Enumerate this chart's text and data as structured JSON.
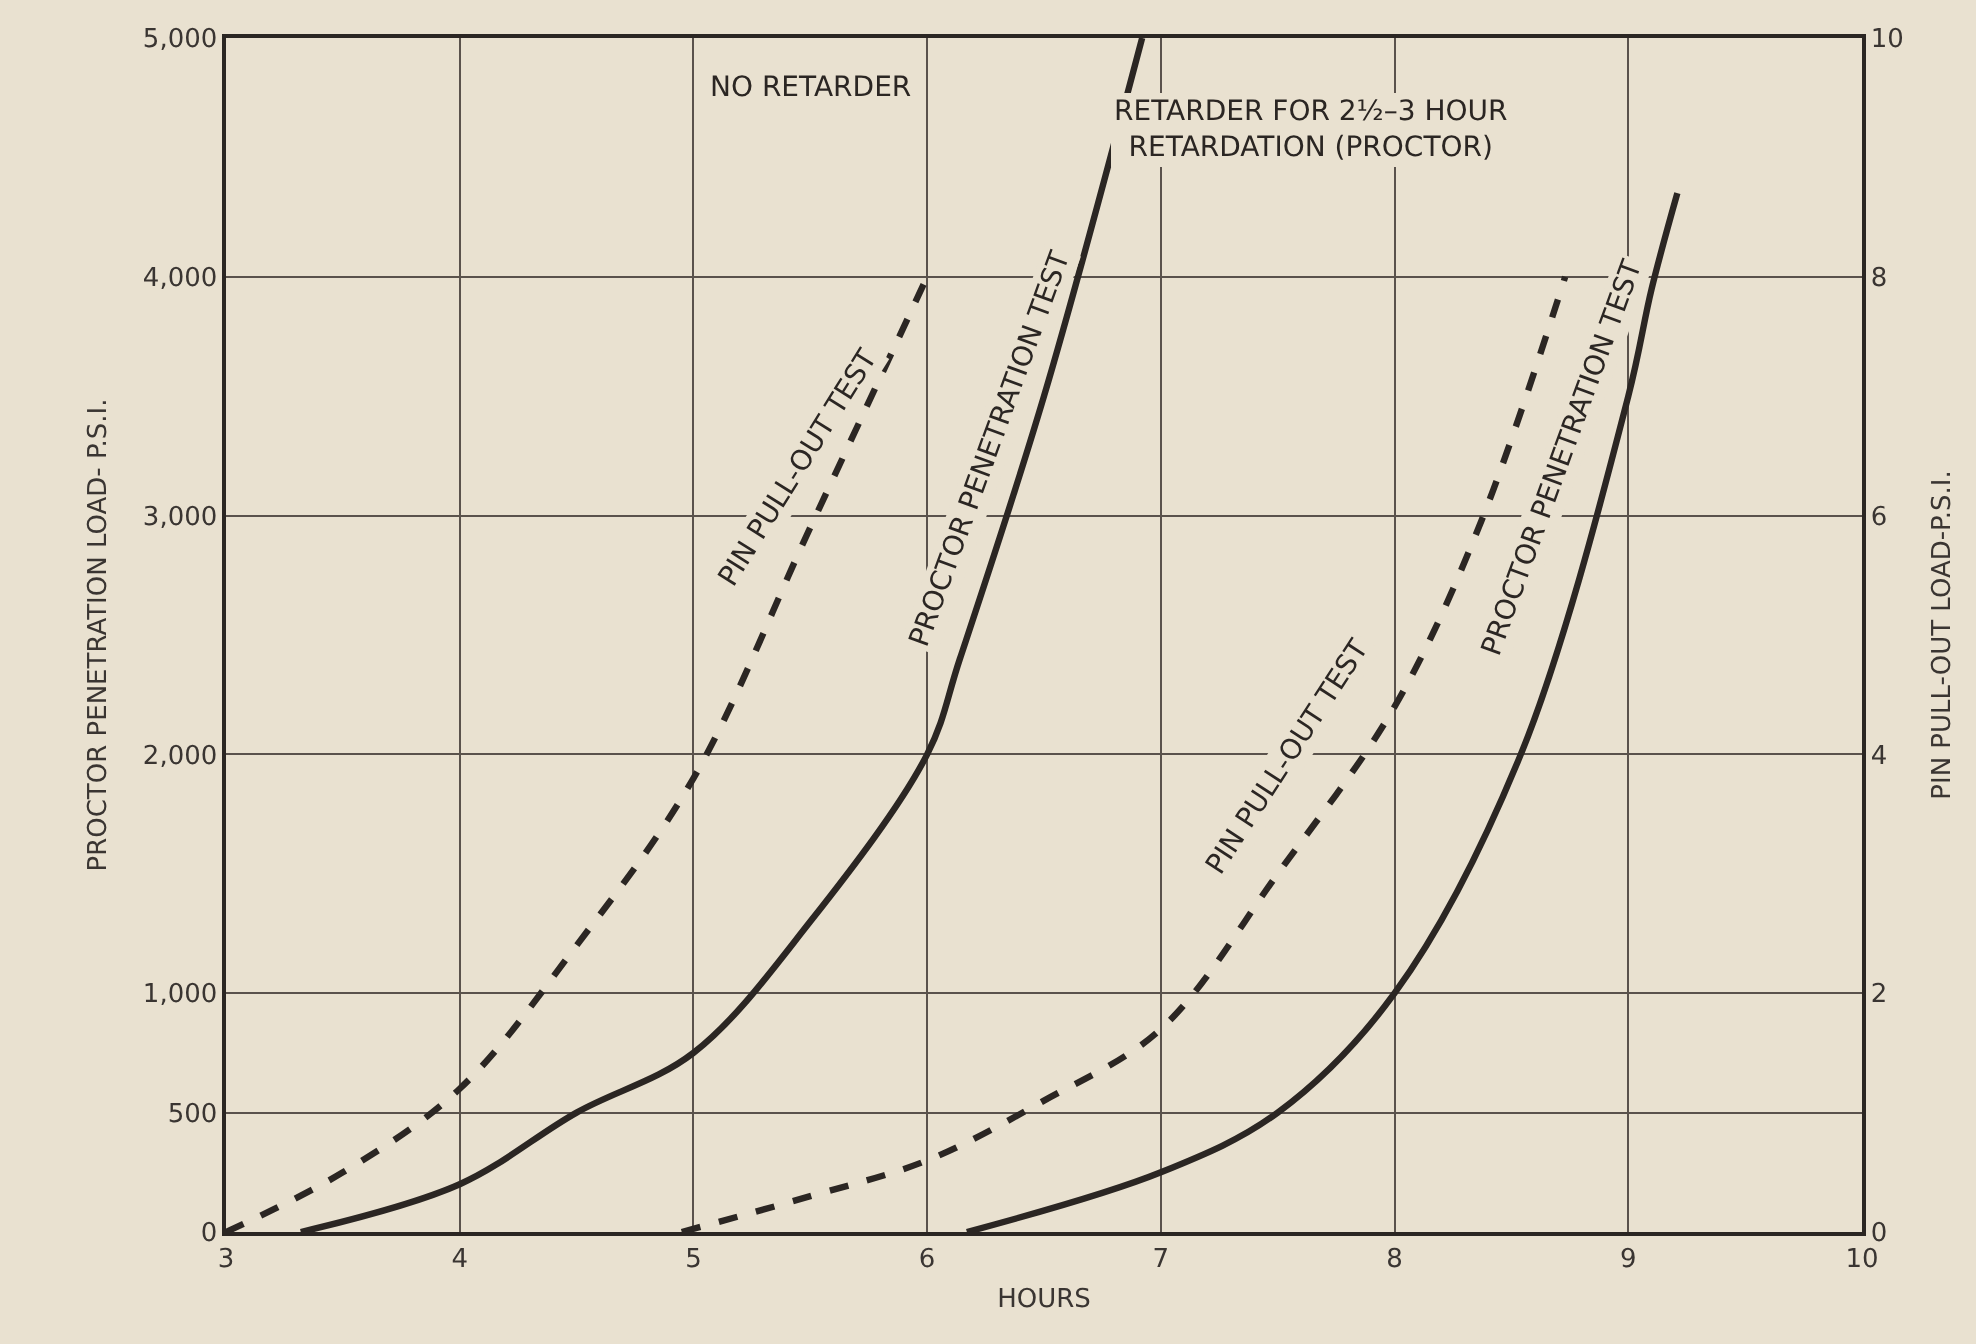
{
  "chart_data": {
    "type": "line",
    "xlabel": "HOURS",
    "ylabel": "PROCTOR PENETRATION LOAD- P.S.I.",
    "y2label": "PIN PULL-OUT LOAD-P.S.I.",
    "series": [
      {
        "name": "PIN PULL-OUT TEST",
        "color": "#2b2623",
        "line_style": "dashed",
        "axis": "y2",
        "x": [
          3,
          3.5,
          4,
          4.5,
          5,
          5.5,
          6
        ],
        "values": [
          0,
          0.5,
          1.2,
          2.4,
          3.8,
          5.9,
          8
        ]
      },
      {
        "name": "PROCTOR PENETRATION TEST",
        "color": "#2b2623",
        "line_style": "solid",
        "x": [
          3.32,
          4,
          4.5,
          5,
          5.5,
          6,
          6.14,
          6.5,
          6.92
        ],
        "values": [
          0,
          200,
          500,
          750,
          1300,
          2000,
          2400,
          3500,
          5000
        ]
      },
      {
        "name": "PIN PULL-OUT TEST",
        "color": "#2b2623",
        "line_style": "dashed",
        "axis": "y2",
        "x": [
          4.95,
          5.5,
          6,
          6.5,
          7,
          7.5,
          8,
          8.36,
          8.73
        ],
        "values": [
          0,
          0.3,
          0.6,
          1.1,
          1.7,
          3.0,
          4.4,
          5.9,
          8
        ]
      },
      {
        "name": "PROCTOR PENETRATION TEST",
        "color": "#2b2623",
        "line_style": "solid",
        "x": [
          6.17,
          7,
          7.5,
          8,
          8.54,
          9,
          9.1,
          9.21
        ],
        "values": [
          0,
          250,
          500,
          1000,
          2000,
          3500,
          3950,
          4350
        ]
      }
    ],
    "xlim": [
      3,
      10
    ],
    "xticks": [
      3,
      4,
      5,
      6,
      7,
      8,
      9,
      10
    ],
    "ylim": [
      0,
      5000
    ],
    "yticks": [
      0,
      500,
      {
        "value": 1000,
        "label": "1,000"
      },
      {
        "value": 2000,
        "label": "2,000"
      },
      {
        "value": 3000,
        "label": "3,000"
      },
      {
        "value": 4000,
        "label": "4,000"
      },
      {
        "value": 5000,
        "label": "5,000"
      }
    ],
    "y2lim": [
      0,
      10
    ],
    "y2ticks": [
      0,
      2,
      4,
      6,
      8,
      10
    ],
    "grid": true,
    "legend": false,
    "marker": "none",
    "annotations": [
      "NO RETARDER",
      "RETARDER FOR 2½–3 HOUR\nRETARDATION (PROCTOR)"
    ]
  }
}
